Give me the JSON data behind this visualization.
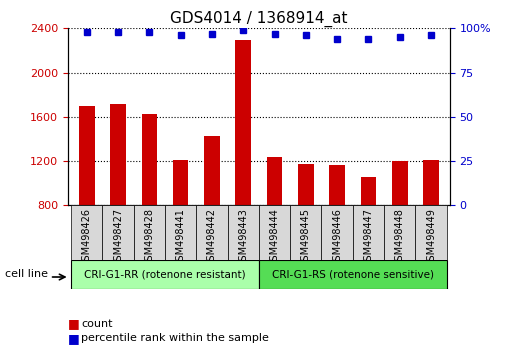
{
  "title": "GDS4014 / 1368914_at",
  "categories": [
    "GSM498426",
    "GSM498427",
    "GSM498428",
    "GSM498441",
    "GSM498442",
    "GSM498443",
    "GSM498444",
    "GSM498445",
    "GSM498446",
    "GSM498447",
    "GSM498448",
    "GSM498449"
  ],
  "bar_values": [
    1700,
    1720,
    1630,
    1210,
    1430,
    2290,
    1240,
    1175,
    1160,
    1060,
    1205,
    1210
  ],
  "percentile_values": [
    98,
    98,
    98,
    96,
    97,
    99,
    97,
    96,
    94,
    94,
    95,
    96
  ],
  "bar_color": "#cc0000",
  "dot_color": "#0000cc",
  "ylim_left": [
    800,
    2400
  ],
  "ylim_right": [
    0,
    100
  ],
  "yticks_left": [
    800,
    1200,
    1600,
    2000,
    2400
  ],
  "yticks_right": [
    0,
    25,
    50,
    75,
    100
  ],
  "group1_label": "CRI-G1-RR (rotenone resistant)",
  "group2_label": "CRI-G1-RS (rotenone sensitive)",
  "group1_color": "#aaffaa",
  "group2_color": "#55dd55",
  "cell_line_label": "cell line",
  "legend_count": "count",
  "legend_percentile": "percentile rank within the sample",
  "tick_area_color": "#d8d8d8",
  "title_fontsize": 11,
  "tick_fontsize": 8,
  "n_group1": 6,
  "n_group2": 6
}
